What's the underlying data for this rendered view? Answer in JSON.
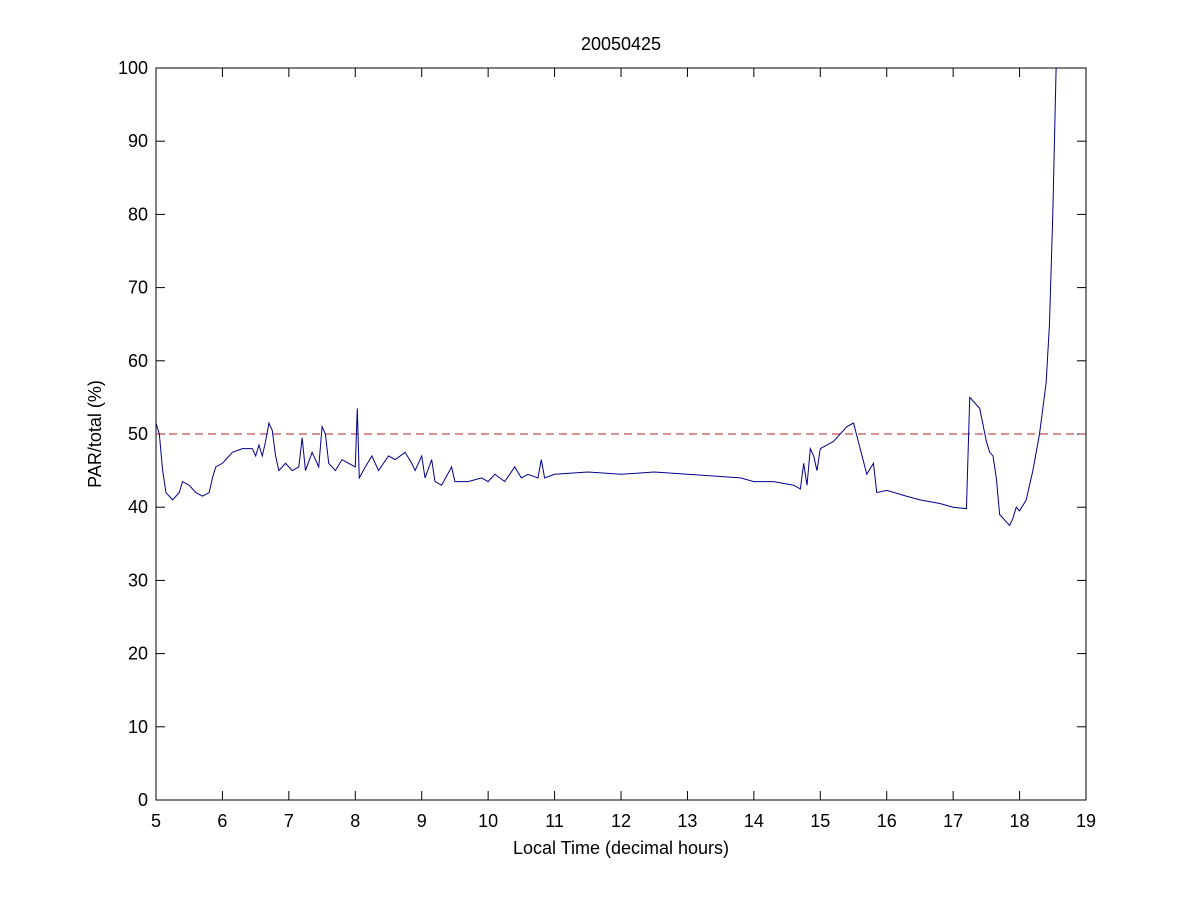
{
  "chart_data": {
    "type": "line",
    "title": "20050425",
    "xlabel": "Local Time (decimal hours)",
    "ylabel": "PAR/total (%)",
    "xlim": [
      5,
      19
    ],
    "xticks": [
      5,
      6,
      7,
      8,
      9,
      10,
      11,
      12,
      13,
      14,
      15,
      16,
      17,
      18,
      19
    ],
    "ylim": [
      0,
      100
    ],
    "yticks": [
      0,
      10,
      20,
      30,
      40,
      50,
      60,
      70,
      80,
      90,
      100
    ],
    "hlines": [
      {
        "value": 50,
        "color": "#b22222",
        "style": "dashed"
      }
    ],
    "series": [
      {
        "color": "#00008b",
        "x": [
          5.0,
          5.05,
          5.1,
          5.15,
          5.25,
          5.35,
          5.4,
          5.5,
          5.6,
          5.7,
          5.8,
          5.85,
          5.9,
          6.0,
          6.05,
          6.15,
          6.3,
          6.45,
          6.5,
          6.55,
          6.6,
          6.65,
          6.7,
          6.75,
          6.8,
          6.85,
          6.95,
          7.05,
          7.15,
          7.2,
          7.25,
          7.35,
          7.45,
          7.5,
          7.55,
          7.6,
          7.7,
          7.8,
          7.9,
          8.0,
          8.03,
          8.06,
          8.15,
          8.25,
          8.35,
          8.5,
          8.6,
          8.75,
          8.85,
          8.9,
          9.0,
          9.05,
          9.15,
          9.2,
          9.3,
          9.45,
          9.5,
          9.7,
          9.9,
          10.0,
          10.1,
          10.25,
          10.4,
          10.5,
          10.6,
          10.75,
          10.8,
          10.85,
          11.0,
          11.5,
          12.0,
          12.5,
          13.0,
          13.5,
          13.8,
          14.0,
          14.3,
          14.6,
          14.7,
          14.75,
          14.8,
          14.85,
          14.9,
          14.95,
          15.0,
          15.2,
          15.4,
          15.5,
          15.6,
          15.7,
          15.8,
          15.85,
          16.0,
          16.3,
          16.5,
          16.8,
          17.0,
          17.2,
          17.25,
          17.4,
          17.5,
          17.55,
          17.6,
          17.65,
          17.7,
          17.8,
          17.85,
          17.9,
          17.95,
          18.0,
          18.1,
          18.2,
          18.3,
          18.4,
          18.45,
          18.5,
          18.55
        ],
        "values": [
          51.5,
          50,
          45,
          42,
          41,
          42,
          43.5,
          43,
          42,
          41.5,
          42,
          44,
          45.5,
          46,
          46.5,
          47.5,
          48,
          48,
          47,
          48.5,
          47,
          49,
          51.5,
          50.5,
          47,
          45,
          46,
          45,
          45.5,
          49.5,
          45,
          47.5,
          45.5,
          51,
          50,
          46,
          45,
          46.5,
          46,
          45.5,
          53.5,
          44,
          45.5,
          47,
          45,
          47,
          46.5,
          47.5,
          46,
          45,
          47,
          44,
          46.5,
          43.5,
          43,
          45.5,
          43.5,
          43.5,
          44,
          43.5,
          44.5,
          43.5,
          45.5,
          44,
          44.5,
          44,
          46.5,
          44,
          44.5,
          44.8,
          44.5,
          44.8,
          44.5,
          44.2,
          44,
          43.5,
          43.5,
          43,
          42.5,
          46,
          43,
          48,
          47,
          45,
          48,
          49,
          51,
          51.5,
          48,
          44.5,
          46,
          42,
          42.3,
          41.5,
          41,
          40.5,
          40,
          39.8,
          55,
          53.5,
          49,
          47.5,
          47,
          44,
          39,
          38,
          37.5,
          38.5,
          40,
          39.5,
          41,
          45,
          50,
          57,
          65,
          80,
          100
        ]
      }
    ]
  }
}
